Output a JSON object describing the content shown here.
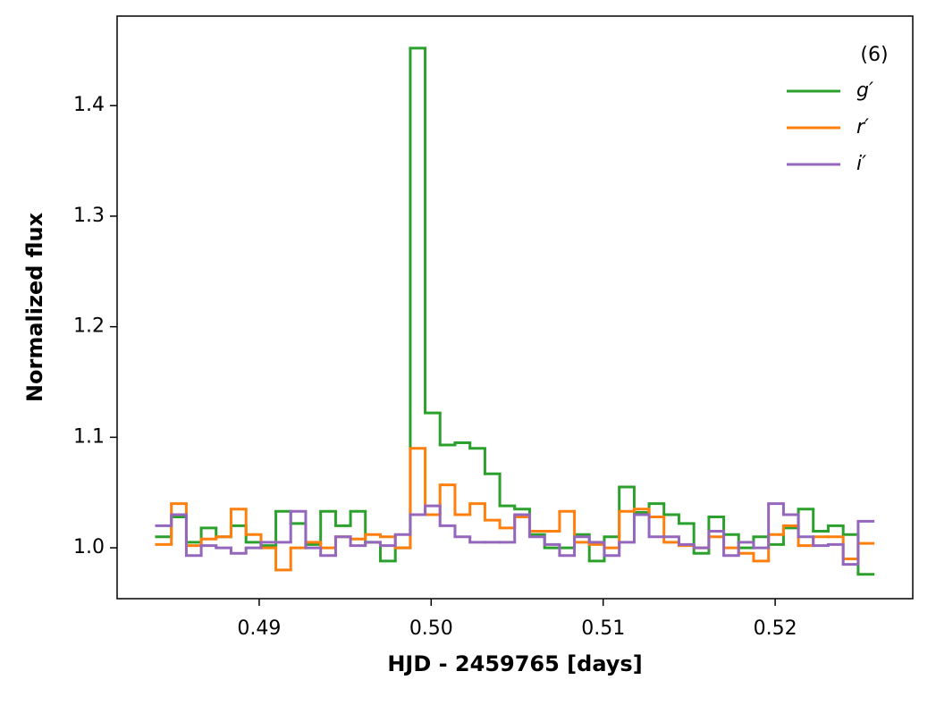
{
  "chart_data": {
    "type": "step",
    "x_label": "HJD - 2459765 [days]",
    "y_label": "Normalized flux",
    "legend_title": "(6)",
    "legend_position": "upper right",
    "x": [
      0.48446,
      0.48533,
      0.4862,
      0.48706,
      0.48793,
      0.4888,
      0.48967,
      0.49054,
      0.4914,
      0.49227,
      0.49314,
      0.49401,
      0.49488,
      0.49574,
      0.49661,
      0.49748,
      0.49835,
      0.49922,
      0.50008,
      0.50095,
      0.50182,
      0.50269,
      0.50356,
      0.50442,
      0.50529,
      0.50616,
      0.50703,
      0.5079,
      0.50876,
      0.50963,
      0.5105,
      0.51137,
      0.51224,
      0.5131,
      0.51397,
      0.51484,
      0.51571,
      0.51658,
      0.51744,
      0.51831,
      0.51918,
      0.52005,
      0.52092,
      0.52178,
      0.52265,
      0.52352,
      0.52439,
      0.52526
    ],
    "series": [
      {
        "name": "g′",
        "color": "#2ca02c",
        "values": [
          1.01,
          1.028,
          1.005,
          1.018,
          1.01,
          1.02,
          1.005,
          1.002,
          1.033,
          1.022,
          1.003,
          1.033,
          1.02,
          1.033,
          1.005,
          0.988,
          1.0,
          1.452,
          1.122,
          1.093,
          1.095,
          1.09,
          1.067,
          1.038,
          1.035,
          1.012,
          1.0,
          1.0,
          1.012,
          0.988,
          1.01,
          1.055,
          1.032,
          1.04,
          1.03,
          1.022,
          0.995,
          1.028,
          1.012,
          1.0,
          1.01,
          1.003,
          1.018,
          1.035,
          1.015,
          1.02,
          1.012,
          0.976
        ]
      },
      {
        "name": "r′",
        "color": "#ff7f0e",
        "values": [
          1.003,
          1.04,
          1.002,
          1.008,
          1.01,
          1.035,
          1.012,
          1.0,
          0.98,
          1.0,
          1.005,
          1.0,
          1.01,
          1.008,
          1.012,
          1.01,
          1.0,
          1.09,
          1.03,
          1.057,
          1.03,
          1.04,
          1.025,
          1.018,
          1.028,
          1.015,
          1.015,
          1.033,
          1.005,
          1.003,
          1.0,
          1.033,
          1.035,
          1.028,
          1.005,
          1.002,
          1.0,
          1.01,
          1.0,
          0.995,
          0.988,
          1.012,
          1.02,
          1.002,
          1.01,
          1.01,
          0.99,
          1.004
        ]
      },
      {
        "name": "i′",
        "color": "#9467bd",
        "values": [
          1.02,
          1.03,
          0.993,
          1.002,
          1.0,
          0.995,
          1.0,
          1.005,
          1.005,
          1.033,
          1.0,
          0.993,
          1.01,
          1.002,
          1.005,
          1.002,
          1.012,
          1.03,
          1.038,
          1.02,
          1.01,
          1.005,
          1.005,
          1.005,
          1.03,
          1.01,
          1.003,
          0.993,
          1.01,
          1.005,
          0.993,
          1.005,
          1.03,
          1.01,
          1.01,
          1.003,
          1.0,
          1.015,
          0.993,
          1.005,
          1.0,
          1.04,
          1.03,
          1.01,
          1.002,
          1.003,
          0.985,
          1.024
        ]
      }
    ],
    "xlim": [
      0.48174,
      0.528
    ],
    "xticks": [
      0.49,
      {
        "value": 0.5,
        "label": "0.50"
      },
      0.51,
      0.52
    ],
    "ylim": [
      0.954,
      1.481
    ],
    "yticks": [
      {
        "value": 1,
        "label": "1.0"
      },
      1.1,
      1.2,
      1.3,
      1.4
    ]
  }
}
